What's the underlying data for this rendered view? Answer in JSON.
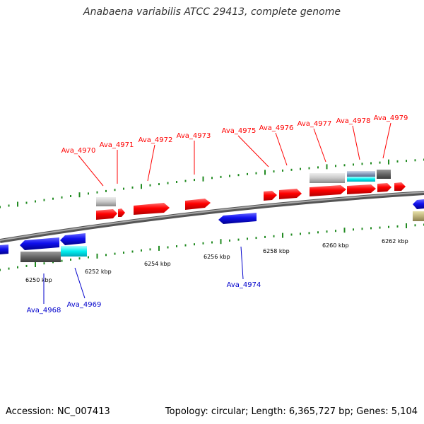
{
  "title": "Anabaena variabilis ATCC 29413, complete genome",
  "footer": {
    "accession": "Accession: NC_007413",
    "summary": "Topology: circular; Length: 6,365,727 bp; Genes: 5,104"
  },
  "colors": {
    "forward_label": "#ff0000",
    "reverse_label": "#0000cc",
    "tick": "#228b22",
    "backbone": "#808080"
  },
  "scale_labels": [
    "6250 kbp",
    "6252 kbp",
    "6254 kbp",
    "6256 kbp",
    "6258 kbp",
    "6260 kbp",
    "6262 kbp"
  ],
  "forward_genes": [
    "Ava_4970",
    "Ava_4971",
    "Ava_4972",
    "Ava_4973",
    "Ava_4975",
    "Ava_4976",
    "Ava_4977",
    "Ava_4978",
    "Ava_4979"
  ],
  "reverse_genes": [
    "Ava_4968",
    "Ava_4969",
    "Ava_4974"
  ]
}
